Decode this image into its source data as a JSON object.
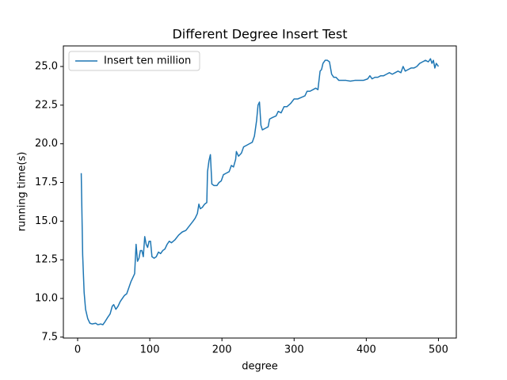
{
  "chart_data": {
    "type": "line",
    "title": "Different Degree Insert Test",
    "x_label": "degree",
    "y_label": "running time(s)",
    "x": [
      5,
      7,
      9,
      11,
      14,
      17,
      20,
      25,
      28,
      32,
      35,
      38,
      42,
      45,
      48,
      50,
      53,
      56,
      59,
      62,
      65,
      68,
      71,
      74,
      77,
      79,
      81,
      83,
      85,
      87,
      89,
      91,
      93,
      95,
      97,
      99,
      101,
      103,
      106,
      109,
      112,
      115,
      118,
      121,
      124,
      127,
      130,
      135,
      140,
      145,
      150,
      155,
      160,
      163,
      166,
      168,
      170,
      173,
      176,
      179,
      180,
      182,
      184,
      186,
      189,
      193,
      196,
      199,
      202,
      206,
      210,
      213,
      216,
      219,
      220,
      223,
      227,
      230,
      234,
      238,
      242,
      245,
      248,
      250,
      252,
      254,
      256,
      260,
      264,
      266,
      270,
      275,
      278,
      282,
      286,
      290,
      295,
      300,
      305,
      310,
      315,
      318,
      322,
      326,
      330,
      333,
      336,
      338,
      340,
      343,
      346,
      349,
      352,
      355,
      358,
      362,
      367,
      372,
      378,
      384,
      390,
      396,
      402,
      405,
      408,
      412,
      416,
      420,
      424,
      428,
      432,
      436,
      440,
      444,
      448,
      451,
      454,
      458,
      462,
      466,
      470,
      474,
      478,
      482,
      486,
      489,
      491,
      493,
      495,
      497,
      500
    ],
    "series": [
      {
        "name": "Insert ten million",
        "color": "#1f77b4",
        "values": [
          18.1,
          12.8,
          10.4,
          9.3,
          8.7,
          8.4,
          8.35,
          8.4,
          8.3,
          8.35,
          8.3,
          8.5,
          8.8,
          9.0,
          9.5,
          9.6,
          9.3,
          9.5,
          9.8,
          10.0,
          10.2,
          10.3,
          10.7,
          11.1,
          11.4,
          11.6,
          13.5,
          12.4,
          12.6,
          13.1,
          13.1,
          12.7,
          14.0,
          13.5,
          13.3,
          13.7,
          13.7,
          12.7,
          12.6,
          12.7,
          13.0,
          12.9,
          13.1,
          13.2,
          13.5,
          13.7,
          13.6,
          13.8,
          14.1,
          14.3,
          14.4,
          14.7,
          15.0,
          15.2,
          15.5,
          16.1,
          15.8,
          15.9,
          16.1,
          16.2,
          18.2,
          18.9,
          19.3,
          17.4,
          17.3,
          17.3,
          17.5,
          17.6,
          18.0,
          18.1,
          18.2,
          18.6,
          18.5,
          19.0,
          19.5,
          19.2,
          19.4,
          19.8,
          19.9,
          20.0,
          20.1,
          20.5,
          21.5,
          22.5,
          22.7,
          21.2,
          20.9,
          21.0,
          21.1,
          21.6,
          21.7,
          21.8,
          22.1,
          22.0,
          22.4,
          22.4,
          22.6,
          22.9,
          22.9,
          23.0,
          23.1,
          23.4,
          23.4,
          23.5,
          23.6,
          23.5,
          24.7,
          24.8,
          25.2,
          25.4,
          25.4,
          25.3,
          24.5,
          24.3,
          24.3,
          24.1,
          24.1,
          24.1,
          24.05,
          24.1,
          24.1,
          24.1,
          24.2,
          24.4,
          24.2,
          24.3,
          24.3,
          24.4,
          24.4,
          24.5,
          24.6,
          24.5,
          24.6,
          24.7,
          24.6,
          25.0,
          24.7,
          24.8,
          24.9,
          24.9,
          25.0,
          25.2,
          25.3,
          25.4,
          25.3,
          25.5,
          25.2,
          25.4,
          24.9,
          25.2,
          25.0
        ]
      }
    ],
    "xlim": [
      -19.75,
      524.75
    ],
    "ylim": [
      7.44,
      26.33
    ],
    "xticks": [
      0,
      100,
      200,
      300,
      400,
      500
    ],
    "yticks": [
      7.5,
      {
        "value": 10,
        "label": "10.0"
      },
      12.5,
      {
        "value": 15,
        "label": "15.0"
      },
      17.5,
      {
        "value": 20,
        "label": "20.0"
      },
      22.5,
      {
        "value": 25,
        "label": "25.0"
      }
    ],
    "legend": "upper left"
  }
}
